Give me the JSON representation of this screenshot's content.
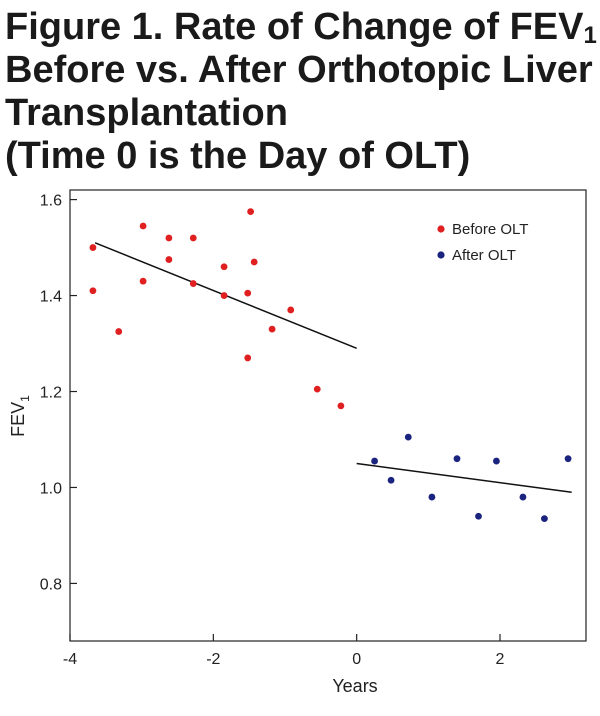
{
  "title": {
    "line1": "Figure 1. Rate of Change of FEV",
    "line1_sub": "1",
    "line2": "Before vs. After Orthotopic Liver",
    "line3": "Transplantation",
    "line4": "(Time 0 is the Day of OLT)"
  },
  "chart_data": {
    "type": "scatter",
    "xlabel": "Years",
    "ylabel": "FEV",
    "ylabel_sub": "1",
    "xlim": [
      -4,
      3.2
    ],
    "ylim": [
      0.68,
      1.62
    ],
    "xticks": [
      -4,
      -2,
      0,
      2
    ],
    "xtick_labels": [
      "-4",
      "-2",
      "0",
      "2"
    ],
    "yticks": [
      0.8,
      1.0,
      1.2,
      1.4,
      1.6
    ],
    "ytick_labels": [
      "0.8",
      "1.0",
      "1.2",
      "1.4",
      "1.6"
    ],
    "grid": false,
    "legend_position": "top-right",
    "series": [
      {
        "name": "Before OLT",
        "color": "#e02020",
        "points": [
          [
            -3.68,
            1.5
          ],
          [
            -3.68,
            1.41
          ],
          [
            -3.32,
            1.325
          ],
          [
            -2.98,
            1.545
          ],
          [
            -2.98,
            1.43
          ],
          [
            -2.62,
            1.52
          ],
          [
            -2.62,
            1.475
          ],
          [
            -2.28,
            1.52
          ],
          [
            -2.28,
            1.425
          ],
          [
            -1.85,
            1.46
          ],
          [
            -1.85,
            1.4
          ],
          [
            -1.48,
            1.575
          ],
          [
            -1.43,
            1.47
          ],
          [
            -1.52,
            1.405
          ],
          [
            -1.18,
            1.33
          ],
          [
            -0.92,
            1.37
          ],
          [
            -1.52,
            1.27
          ],
          [
            -0.55,
            1.205
          ],
          [
            -0.22,
            1.17
          ]
        ],
        "trend": [
          [
            -3.65,
            1.51
          ],
          [
            0.0,
            1.29
          ]
        ]
      },
      {
        "name": "After OLT",
        "color": "#1a237e",
        "points": [
          [
            0.25,
            1.055
          ],
          [
            0.48,
            1.015
          ],
          [
            0.72,
            1.105
          ],
          [
            1.05,
            0.98
          ],
          [
            1.4,
            1.06
          ],
          [
            1.7,
            0.94
          ],
          [
            1.95,
            1.055
          ],
          [
            2.32,
            0.98
          ],
          [
            2.62,
            0.935
          ],
          [
            2.95,
            1.06
          ]
        ],
        "trend": [
          [
            0.0,
            1.05
          ],
          [
            3.0,
            0.99
          ]
        ]
      }
    ]
  }
}
